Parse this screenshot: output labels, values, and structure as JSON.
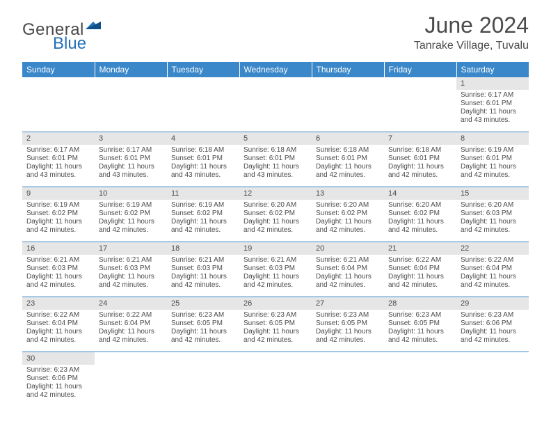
{
  "brand": {
    "name1": "General",
    "name2": "Blue"
  },
  "title": "June 2024",
  "location": "Tanrake Village, Tuvalu",
  "colors": {
    "header_bg": "#3a87c9",
    "header_text": "#ffffff",
    "daynum_bg": "#e6e6e6",
    "text": "#4a4a4a",
    "rule": "#3a87c9",
    "logo_accent": "#2370b8"
  },
  "weekdays": [
    "Sunday",
    "Monday",
    "Tuesday",
    "Wednesday",
    "Thursday",
    "Friday",
    "Saturday"
  ],
  "weeks": [
    [
      {
        "n": "",
        "lines": [
          "",
          "",
          "",
          ""
        ]
      },
      {
        "n": "",
        "lines": [
          "",
          "",
          "",
          ""
        ]
      },
      {
        "n": "",
        "lines": [
          "",
          "",
          "",
          ""
        ]
      },
      {
        "n": "",
        "lines": [
          "",
          "",
          "",
          ""
        ]
      },
      {
        "n": "",
        "lines": [
          "",
          "",
          "",
          ""
        ]
      },
      {
        "n": "",
        "lines": [
          "",
          "",
          "",
          ""
        ]
      },
      {
        "n": "1",
        "lines": [
          "Sunrise: 6:17 AM",
          "Sunset: 6:01 PM",
          "Daylight: 11 hours",
          "and 43 minutes."
        ]
      }
    ],
    [
      {
        "n": "2",
        "lines": [
          "Sunrise: 6:17 AM",
          "Sunset: 6:01 PM",
          "Daylight: 11 hours",
          "and 43 minutes."
        ]
      },
      {
        "n": "3",
        "lines": [
          "Sunrise: 6:17 AM",
          "Sunset: 6:01 PM",
          "Daylight: 11 hours",
          "and 43 minutes."
        ]
      },
      {
        "n": "4",
        "lines": [
          "Sunrise: 6:18 AM",
          "Sunset: 6:01 PM",
          "Daylight: 11 hours",
          "and 43 minutes."
        ]
      },
      {
        "n": "5",
        "lines": [
          "Sunrise: 6:18 AM",
          "Sunset: 6:01 PM",
          "Daylight: 11 hours",
          "and 43 minutes."
        ]
      },
      {
        "n": "6",
        "lines": [
          "Sunrise: 6:18 AM",
          "Sunset: 6:01 PM",
          "Daylight: 11 hours",
          "and 42 minutes."
        ]
      },
      {
        "n": "7",
        "lines": [
          "Sunrise: 6:18 AM",
          "Sunset: 6:01 PM",
          "Daylight: 11 hours",
          "and 42 minutes."
        ]
      },
      {
        "n": "8",
        "lines": [
          "Sunrise: 6:19 AM",
          "Sunset: 6:01 PM",
          "Daylight: 11 hours",
          "and 42 minutes."
        ]
      }
    ],
    [
      {
        "n": "9",
        "lines": [
          "Sunrise: 6:19 AM",
          "Sunset: 6:02 PM",
          "Daylight: 11 hours",
          "and 42 minutes."
        ]
      },
      {
        "n": "10",
        "lines": [
          "Sunrise: 6:19 AM",
          "Sunset: 6:02 PM",
          "Daylight: 11 hours",
          "and 42 minutes."
        ]
      },
      {
        "n": "11",
        "lines": [
          "Sunrise: 6:19 AM",
          "Sunset: 6:02 PM",
          "Daylight: 11 hours",
          "and 42 minutes."
        ]
      },
      {
        "n": "12",
        "lines": [
          "Sunrise: 6:20 AM",
          "Sunset: 6:02 PM",
          "Daylight: 11 hours",
          "and 42 minutes."
        ]
      },
      {
        "n": "13",
        "lines": [
          "Sunrise: 6:20 AM",
          "Sunset: 6:02 PM",
          "Daylight: 11 hours",
          "and 42 minutes."
        ]
      },
      {
        "n": "14",
        "lines": [
          "Sunrise: 6:20 AM",
          "Sunset: 6:02 PM",
          "Daylight: 11 hours",
          "and 42 minutes."
        ]
      },
      {
        "n": "15",
        "lines": [
          "Sunrise: 6:20 AM",
          "Sunset: 6:03 PM",
          "Daylight: 11 hours",
          "and 42 minutes."
        ]
      }
    ],
    [
      {
        "n": "16",
        "lines": [
          "Sunrise: 6:21 AM",
          "Sunset: 6:03 PM",
          "Daylight: 11 hours",
          "and 42 minutes."
        ]
      },
      {
        "n": "17",
        "lines": [
          "Sunrise: 6:21 AM",
          "Sunset: 6:03 PM",
          "Daylight: 11 hours",
          "and 42 minutes."
        ]
      },
      {
        "n": "18",
        "lines": [
          "Sunrise: 6:21 AM",
          "Sunset: 6:03 PM",
          "Daylight: 11 hours",
          "and 42 minutes."
        ]
      },
      {
        "n": "19",
        "lines": [
          "Sunrise: 6:21 AM",
          "Sunset: 6:03 PM",
          "Daylight: 11 hours",
          "and 42 minutes."
        ]
      },
      {
        "n": "20",
        "lines": [
          "Sunrise: 6:21 AM",
          "Sunset: 6:04 PM",
          "Daylight: 11 hours",
          "and 42 minutes."
        ]
      },
      {
        "n": "21",
        "lines": [
          "Sunrise: 6:22 AM",
          "Sunset: 6:04 PM",
          "Daylight: 11 hours",
          "and 42 minutes."
        ]
      },
      {
        "n": "22",
        "lines": [
          "Sunrise: 6:22 AM",
          "Sunset: 6:04 PM",
          "Daylight: 11 hours",
          "and 42 minutes."
        ]
      }
    ],
    [
      {
        "n": "23",
        "lines": [
          "Sunrise: 6:22 AM",
          "Sunset: 6:04 PM",
          "Daylight: 11 hours",
          "and 42 minutes."
        ]
      },
      {
        "n": "24",
        "lines": [
          "Sunrise: 6:22 AM",
          "Sunset: 6:04 PM",
          "Daylight: 11 hours",
          "and 42 minutes."
        ]
      },
      {
        "n": "25",
        "lines": [
          "Sunrise: 6:23 AM",
          "Sunset: 6:05 PM",
          "Daylight: 11 hours",
          "and 42 minutes."
        ]
      },
      {
        "n": "26",
        "lines": [
          "Sunrise: 6:23 AM",
          "Sunset: 6:05 PM",
          "Daylight: 11 hours",
          "and 42 minutes."
        ]
      },
      {
        "n": "27",
        "lines": [
          "Sunrise: 6:23 AM",
          "Sunset: 6:05 PM",
          "Daylight: 11 hours",
          "and 42 minutes."
        ]
      },
      {
        "n": "28",
        "lines": [
          "Sunrise: 6:23 AM",
          "Sunset: 6:05 PM",
          "Daylight: 11 hours",
          "and 42 minutes."
        ]
      },
      {
        "n": "29",
        "lines": [
          "Sunrise: 6:23 AM",
          "Sunset: 6:06 PM",
          "Daylight: 11 hours",
          "and 42 minutes."
        ]
      }
    ],
    [
      {
        "n": "30",
        "lines": [
          "Sunrise: 6:23 AM",
          "Sunset: 6:06 PM",
          "Daylight: 11 hours",
          "and 42 minutes."
        ]
      },
      {
        "n": "",
        "lines": [
          "",
          "",
          "",
          ""
        ]
      },
      {
        "n": "",
        "lines": [
          "",
          "",
          "",
          ""
        ]
      },
      {
        "n": "",
        "lines": [
          "",
          "",
          "",
          ""
        ]
      },
      {
        "n": "",
        "lines": [
          "",
          "",
          "",
          ""
        ]
      },
      {
        "n": "",
        "lines": [
          "",
          "",
          "",
          ""
        ]
      },
      {
        "n": "",
        "lines": [
          "",
          "",
          "",
          ""
        ]
      }
    ]
  ]
}
